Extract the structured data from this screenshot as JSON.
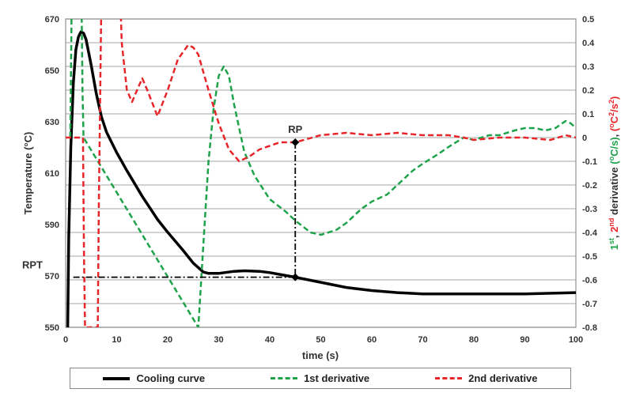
{
  "chart_data": {
    "type": "line",
    "xlabel": "time (s)",
    "ylabel": "Temperature (°C)",
    "ylabel_parts": [
      "Temperature (",
      "o",
      "C)"
    ],
    "y2label_parts": [
      {
        "text": "1",
        "color": "#1ea24a"
      },
      {
        "text": "st",
        "color": "#1ea24a",
        "sup": true
      },
      {
        "text": ", ",
        "color": "#333"
      },
      {
        "text": "2",
        "color": "#e8262a"
      },
      {
        "text": "nd",
        "color": "#e8262a",
        "sup": true
      },
      {
        "text": " derivative ",
        "color": "#333"
      },
      {
        "text": "(",
        "color": "#1ea24a"
      },
      {
        "text": "o",
        "color": "#1ea24a",
        "sup": true
      },
      {
        "text": "C/s)",
        "color": "#1ea24a"
      },
      {
        "text": ", ",
        "color": "#333"
      },
      {
        "text": "(",
        "color": "#e8262a"
      },
      {
        "text": "o",
        "color": "#e8262a",
        "sup": true
      },
      {
        "text": "C",
        "color": "#e8262a"
      },
      {
        "text": "2",
        "color": "#e8262a",
        "sup": true
      },
      {
        "text": "/s",
        "color": "#e8262a"
      },
      {
        "text": "2",
        "color": "#e8262a",
        "sup": true
      },
      {
        "text": ")",
        "color": "#e8262a"
      }
    ],
    "xlim": [
      0,
      100
    ],
    "ylim": [
      550,
      670
    ],
    "y2lim": [
      -0.8,
      0.5
    ],
    "xticks": [
      "0",
      "10",
      "20",
      "30",
      "40",
      "50",
      "60",
      "70",
      "80",
      "90",
      "100"
    ],
    "yticks": [
      "550",
      "570",
      "590",
      "610",
      "630",
      "650",
      "670"
    ],
    "y2ticks": [
      "-0.8",
      "-0.7",
      "-0.6",
      "-0.5",
      "-0.4",
      "-0.3",
      "-0.2",
      "-0.1",
      "0",
      "0.1",
      "0.2",
      "0.3",
      "0.4",
      "0.5"
    ],
    "grid": "horizontal",
    "legend_position": "bottom",
    "series": [
      {
        "name": "Cooling curve",
        "axis": "left",
        "color": "#000000",
        "style": "solid",
        "x": [
          0.4,
          0.6,
          1,
          1.5,
          2,
          2.5,
          3,
          3.5,
          4,
          5,
          6,
          7,
          8,
          10,
          12,
          15,
          18,
          20,
          23,
          25,
          27,
          28,
          30,
          33,
          35,
          38,
          40,
          45,
          50,
          55,
          60,
          65,
          70,
          80,
          90,
          100
        ],
        "y": [
          550,
          585,
          620,
          645,
          658,
          663,
          665,
          664.5,
          662,
          652,
          641,
          632,
          626,
          618,
          611,
          601,
          592,
          587,
          580,
          575,
          571.5,
          571,
          571,
          571.8,
          572,
          571.8,
          571.3,
          569.5,
          567.5,
          565.5,
          564.3,
          563.5,
          563,
          563,
          563,
          563.5
        ]
      },
      {
        "name": "1st derivative",
        "axis": "right",
        "color": "#1ea24a",
        "style": "dashed",
        "x": [
          0.9,
          1.0,
          1.2,
          3.1,
          3.3,
          3.5,
          26,
          27,
          28,
          29,
          30,
          31,
          32,
          33,
          35,
          37,
          40,
          43,
          45,
          48,
          50,
          53,
          55,
          58,
          60,
          63,
          65,
          68,
          70,
          73,
          75,
          78,
          80,
          83,
          85,
          88,
          90,
          92,
          94,
          96,
          98,
          99,
          100
        ],
        "y": [
          0,
          0.2,
          0.6,
          0.6,
          0.2,
          0,
          -0.8,
          -0.45,
          -0.1,
          0.12,
          0.26,
          0.3,
          0.26,
          0.14,
          -0.06,
          -0.16,
          -0.26,
          -0.31,
          -0.35,
          -0.4,
          -0.41,
          -0.39,
          -0.36,
          -0.3,
          -0.27,
          -0.24,
          -0.2,
          -0.14,
          -0.11,
          -0.07,
          -0.04,
          0,
          -0.01,
          0.01,
          0.01,
          0.03,
          0.04,
          0.04,
          0.03,
          0.04,
          0.07,
          0.06,
          0.04
        ]
      },
      {
        "name": "2nd derivative",
        "axis": "right",
        "color": "#e8262a",
        "style": "dashed",
        "x": [
          0,
          3.4,
          3.6,
          3.8,
          6.3,
          6.5,
          7,
          10.7,
          11,
          12,
          13,
          14,
          15,
          16,
          18,
          20,
          22,
          24,
          25,
          26,
          28,
          30,
          32,
          34,
          36,
          38,
          42,
          45,
          50,
          55,
          60,
          65,
          70,
          75,
          78,
          80,
          85,
          90,
          95,
          98,
          100
        ],
        "y": [
          0,
          0,
          -0.5,
          -0.8,
          -0.8,
          -0.3,
          0.6,
          0.6,
          0.4,
          0.2,
          0.15,
          0.2,
          0.25,
          0.2,
          0.09,
          0.2,
          0.33,
          0.39,
          0.38,
          0.35,
          0.2,
          0.06,
          -0.05,
          -0.1,
          -0.08,
          -0.05,
          -0.02,
          -0.02,
          0.01,
          0.02,
          0.01,
          0.02,
          0.01,
          0.01,
          0,
          -0.01,
          0,
          0,
          -0.01,
          0.01,
          0
        ]
      }
    ],
    "annotations": [
      {
        "text": "RP",
        "x": 45,
        "y2": -0.02
      },
      {
        "text": "RPT",
        "y": 569.5
      }
    ]
  }
}
